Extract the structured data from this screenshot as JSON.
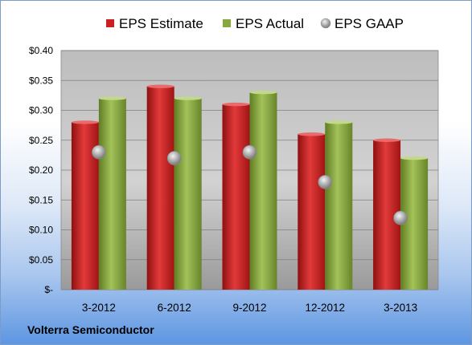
{
  "chart_data": {
    "type": "bar",
    "categories": [
      "3-2012",
      "6-2012",
      "9-2012",
      "12-2012",
      "3-2013"
    ],
    "series": [
      {
        "name": "EPS Estimate",
        "values": [
          0.28,
          0.34,
          0.31,
          0.26,
          0.25
        ],
        "color": "#cc1f1f"
      },
      {
        "name": "EPS Actual",
        "values": [
          0.32,
          0.32,
          0.33,
          0.28,
          0.22
        ],
        "color": "#86a83e"
      },
      {
        "name": "EPS GAAP",
        "values": [
          0.23,
          0.22,
          0.23,
          0.18,
          0.12
        ],
        "color": "#b0b0b0",
        "marker": "circle"
      }
    ],
    "ylim": [
      0,
      0.4
    ],
    "yticks": [
      0,
      0.05,
      0.1,
      0.15,
      0.2,
      0.25,
      0.3,
      0.35,
      0.4
    ],
    "ytick_labels": [
      "$-",
      "$0.05",
      "$0.10",
      "$0.15",
      "$0.20",
      "$0.25",
      "$0.30",
      "$0.35",
      "$0.40"
    ],
    "legend_position": "top",
    "grid": true
  },
  "footer": {
    "company": "Volterra Semiconductor"
  }
}
